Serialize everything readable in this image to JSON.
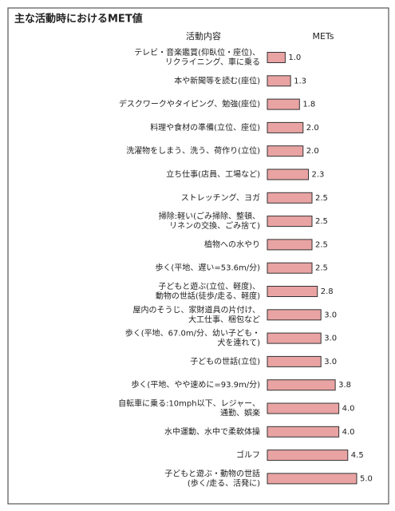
{
  "chart_data": {
    "type": "bar",
    "orientation": "horizontal",
    "title": "主な活動時におけるMET値",
    "category_header": "活動内容",
    "value_header": "METs",
    "color": "#e9a3a3",
    "categories": [
      [
        "テレビ・音楽鑑賞(仰臥位・座位)、",
        "リクライニング、車に乗る"
      ],
      [
        "本や新聞等を読む(座位)"
      ],
      [
        "デスクワークやタイピング、勉強(座位)"
      ],
      [
        "料理や食材の準備(立位、座位)"
      ],
      [
        "洗濯物をしまう、洗う、荷作り(立位)"
      ],
      [
        "立ち仕事(店員、工場など)"
      ],
      [
        "ストレッチング、ヨガ"
      ],
      [
        "掃除:軽い(ごみ掃除、整頓、",
        "リネンの交換、ごみ捨て)"
      ],
      [
        "植物への水やり"
      ],
      [
        "歩く(平地、遅い=53.6m/分)"
      ],
      [
        "子どもと遊ぶ(立位、軽度)、",
        "動物の世話(徒歩/走る、軽度)"
      ],
      [
        "屋内のそうじ、家財道具の片付け、",
        "大工仕事、梱包など"
      ],
      [
        "歩く(平地、67.0m/分、幼い子ども・",
        "犬を連れて)"
      ],
      [
        "子どもの世話(立位)"
      ],
      [
        "歩く(平地、やや速めに=93.9m/分)"
      ],
      [
        "自転車に乗る:10mph以下、レジャー、",
        "通勤、娯楽"
      ],
      [
        "水中運動、水中で柔軟体操"
      ],
      [
        "ゴルフ"
      ],
      [
        "子どもと遊ぶ・動物の世話",
        "(歩く/走る、活発に)"
      ]
    ],
    "values": [
      1.0,
      1.3,
      1.8,
      2.0,
      2.0,
      2.3,
      2.5,
      2.5,
      2.5,
      2.5,
      2.8,
      3.0,
      3.0,
      3.0,
      3.8,
      4.0,
      4.0,
      4.5,
      5.0
    ],
    "value_labels": [
      "1.0",
      "1.3",
      "1.8",
      "2.0",
      "2.0",
      "2.3",
      "2.5",
      "2.5",
      "2.5",
      "2.5",
      "2.8",
      "3.0",
      "3.0",
      "3.0",
      "3.8",
      "4.0",
      "4.0",
      "4.5",
      "5.0"
    ]
  }
}
